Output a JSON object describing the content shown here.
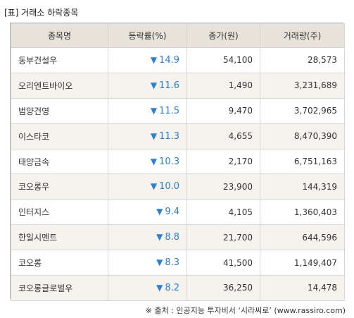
{
  "title": "[표] 거래소 하락종목",
  "headers": [
    "종목명",
    "등락률(%)",
    "종가(원)",
    "거래량(주)"
  ],
  "down_symbol": "▼",
  "rows": [
    {
      "name": "동부건설우",
      "rate": "14.9",
      "price": "54,100",
      "volume": "28,573"
    },
    {
      "name": "오리엔트바이오",
      "rate": "11.6",
      "price": "1,490",
      "volume": "3,231,689"
    },
    {
      "name": "범양건영",
      "rate": "11.5",
      "price": "9,470",
      "volume": "3,702,965"
    },
    {
      "name": "이스타코",
      "rate": "11.3",
      "price": "4,655",
      "volume": "8,470,390"
    },
    {
      "name": "태양금속",
      "rate": "10.3",
      "price": "2,170",
      "volume": "6,751,163"
    },
    {
      "name": "코오롱우",
      "rate": "10.0",
      "price": "23,900",
      "volume": "144,319"
    },
    {
      "name": "인터지스",
      "rate": "9.4",
      "price": "4,105",
      "volume": "1,360,403"
    },
    {
      "name": "한일시멘트",
      "rate": "8.8",
      "price": "21,700",
      "volume": "644,596"
    },
    {
      "name": "코오롱",
      "rate": "8.3",
      "price": "41,500",
      "volume": "1,149,407"
    },
    {
      "name": "코오롱글로벌우",
      "rate": "8.2",
      "price": "36,250",
      "volume": "14,478"
    }
  ],
  "source": "※ 출처 : 인공지능 투자비서 ‘시라씨로’ (www.rassiro.com)",
  "colors": {
    "down": "#2a7fd0",
    "header_bg": "#e7e2da",
    "stripe_bg": "#f6f3ee",
    "border": "#d6d6d6"
  }
}
